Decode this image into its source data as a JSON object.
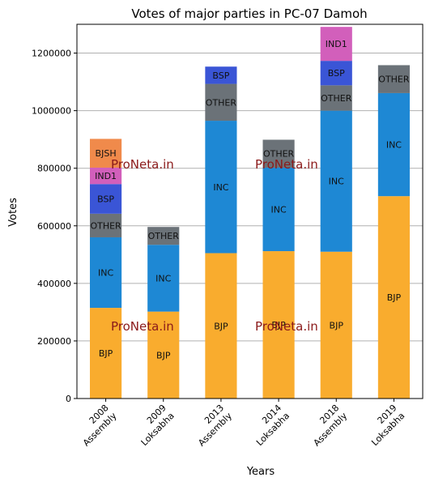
{
  "chart_data": {
    "type": "bar",
    "stacked": true,
    "title": "Votes of major parties in PC-07 Damoh",
    "xlabel": "Years",
    "ylabel": "Votes",
    "ylim": [
      0,
      1300000
    ],
    "yticks": [
      0,
      200000,
      400000,
      600000,
      800000,
      1000000,
      1200000
    ],
    "grid": true,
    "categories": [
      [
        "2008",
        "Assembly"
      ],
      [
        "2009",
        "Loksabha"
      ],
      [
        "2013",
        "Assembly"
      ],
      [
        "2014",
        "Loksabha"
      ],
      [
        "2018",
        "Assembly"
      ],
      [
        "2019",
        "Loksabha"
      ]
    ],
    "colors": {
      "BJP": "#f9ac2e",
      "INC": "#1e88d4",
      "OTHER": "#6b7278",
      "BSP": "#3a55d6",
      "IND1": "#d25fbb",
      "BJSH": "#f08a4b"
    },
    "series": [
      {
        "name": "BJP",
        "values": [
          315000,
          302000,
          505000,
          512000,
          510000,
          703000
        ]
      },
      {
        "name": "INC",
        "values": [
          245000,
          232000,
          460000,
          290000,
          490000,
          358000
        ]
      },
      {
        "name": "OTHER",
        "values": [
          82000,
          62000,
          128000,
          97000,
          88000,
          97000
        ]
      },
      {
        "name": "BSP",
        "values": [
          103000,
          0,
          60000,
          0,
          85000,
          0
        ]
      },
      {
        "name": "IND1",
        "values": [
          57000,
          0,
          0,
          0,
          118000,
          0
        ]
      },
      {
        "name": "BJSH",
        "values": [
          100000,
          0,
          0,
          0,
          0,
          0
        ]
      }
    ],
    "watermark": "ProNeta.in"
  }
}
